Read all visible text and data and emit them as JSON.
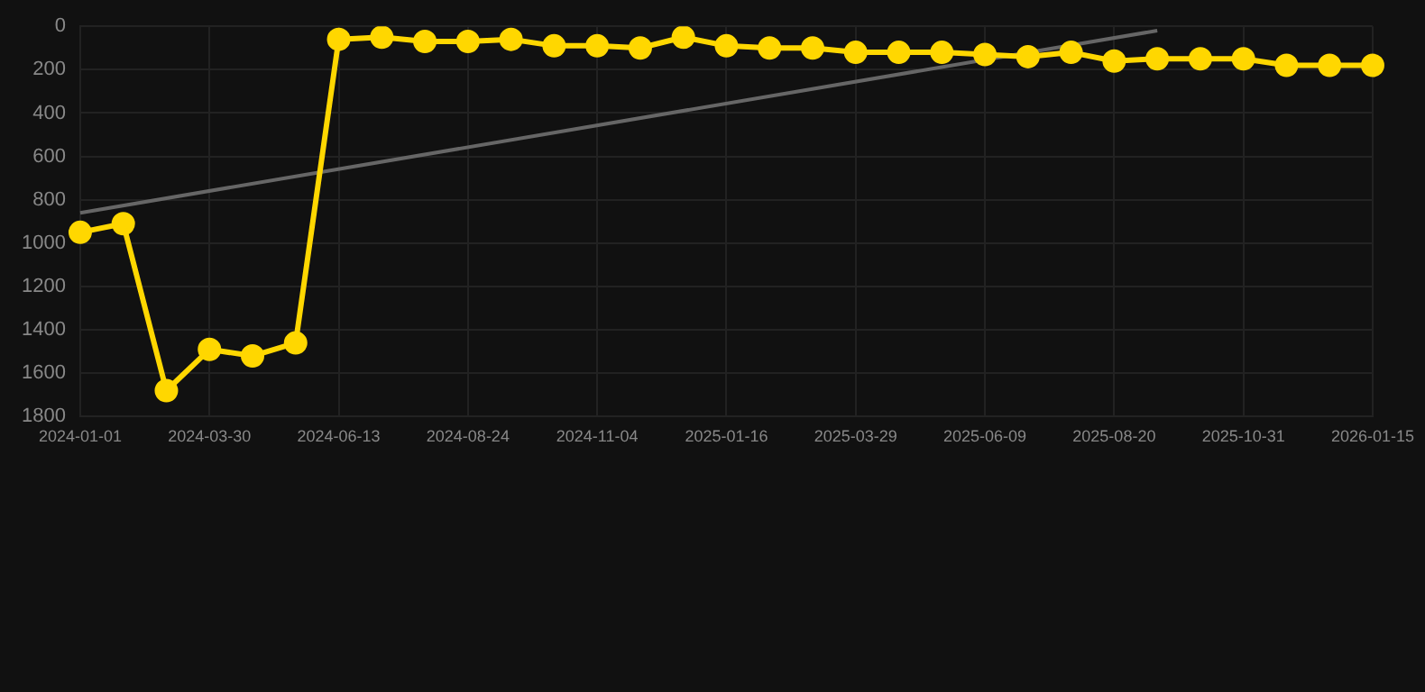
{
  "chart_data": {
    "type": "line",
    "categories": [
      "2024-01-01",
      null,
      null,
      "2024-03-30",
      null,
      null,
      "2024-06-13",
      null,
      null,
      "2024-08-24",
      null,
      null,
      "2024-11-04",
      null,
      null,
      "2025-01-16",
      null,
      null,
      "2025-03-29",
      null,
      null,
      "2025-06-09",
      null,
      null,
      "2025-08-20",
      null,
      null,
      "2025-10-31",
      null,
      null,
      "2026-01-15"
    ],
    "series": [
      {
        "color": "#ffd700",
        "marker": "circle",
        "values": [
          950,
          910,
          1680,
          1490,
          1520,
          1460,
          60,
          50,
          70,
          70,
          60,
          90,
          90,
          100,
          50,
          90,
          100,
          100,
          120,
          120,
          120,
          130,
          140,
          120,
          160,
          150,
          150,
          150,
          180,
          180,
          180
        ]
      },
      {
        "color": "#666666",
        "marker": "none",
        "values": [
          860,
          null,
          null,
          null,
          null,
          null,
          null,
          null,
          null,
          null,
          null,
          null,
          null,
          null,
          null,
          null,
          null,
          null,
          null,
          null,
          null,
          null,
          null,
          null,
          null,
          20,
          null,
          null,
          null,
          null,
          null
        ]
      }
    ],
    "ylim": [
      1800,
      0
    ],
    "yticks": [
      0,
      200,
      400,
      600,
      800,
      1000,
      1200,
      1400,
      1600,
      1800
    ],
    "grid": true,
    "line_style": "solid"
  }
}
